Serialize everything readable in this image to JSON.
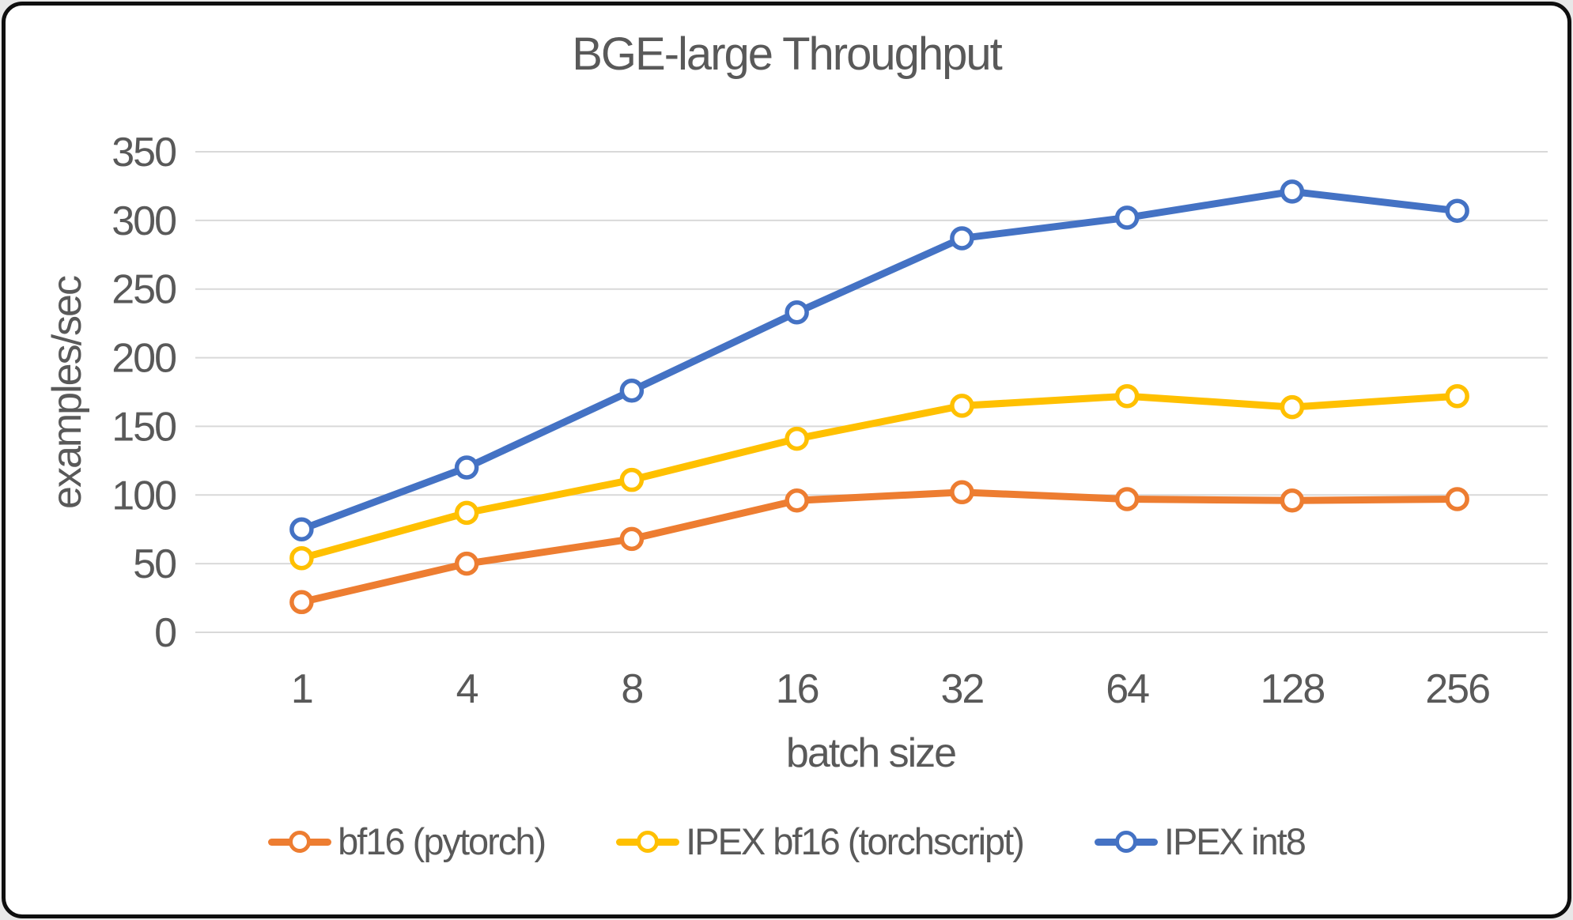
{
  "chart_data": {
    "type": "line",
    "title": "BGE-large Throughput",
    "xlabel": "batch size",
    "ylabel": "examples/sec",
    "categories": [
      "1",
      "4",
      "8",
      "16",
      "32",
      "64",
      "128",
      "256"
    ],
    "series": [
      {
        "name": "bf16 (pytorch)",
        "color": "#ED7D31",
        "values": [
          22,
          50,
          68,
          96,
          102,
          97,
          96,
          97
        ]
      },
      {
        "name": "IPEX bf16 (torchscript)",
        "color": "#FFC000",
        "values": [
          54,
          87,
          111,
          141,
          165,
          172,
          164,
          172
        ]
      },
      {
        "name": "IPEX int8",
        "color": "#4472C4",
        "values": [
          75,
          120,
          176,
          233,
          287,
          302,
          321,
          307
        ]
      }
    ],
    "ylim": [
      0,
      350
    ],
    "yticks": [
      0,
      50,
      100,
      150,
      200,
      250,
      300,
      350
    ],
    "grid": true,
    "legend_position": "bottom",
    "marker_style": "open-circle"
  },
  "colors": {
    "text": "#595959",
    "gridline": "#D9D9D9",
    "plot_background": "#FFFFFF",
    "frame_border": "#0F0F0F",
    "page_background": "#E8E8E8"
  }
}
